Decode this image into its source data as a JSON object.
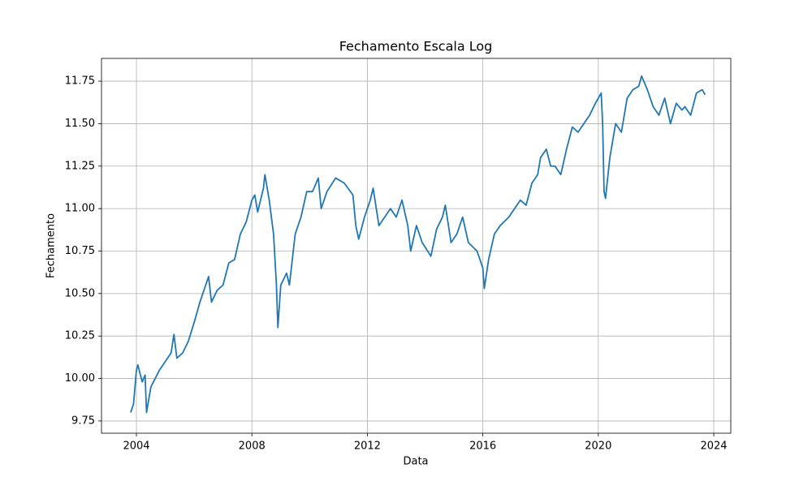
{
  "chart_data": {
    "type": "line",
    "title": "Fechamento Escala Log",
    "x_label": "Data",
    "y_label": "Fechamento",
    "grid": true,
    "xlim": [
      2002.79,
      2024.59
    ],
    "xticks": [
      2004,
      2008,
      2012,
      2016,
      2020,
      2024
    ],
    "ylim": [
      9.678,
      11.884
    ],
    "yticks": [
      9.75,
      {
        "value": 10.0,
        "label": "10.00"
      },
      10.25,
      {
        "value": 10.5,
        "label": "10.50"
      },
      10.75,
      {
        "value": 11.0,
        "label": "11.00"
      },
      11.25,
      {
        "value": 11.5,
        "label": "11.50"
      },
      11.75
    ],
    "x": [
      2003.8,
      2003.9,
      2004.0,
      2004.05,
      2004.2,
      2004.3,
      2004.35,
      2004.5,
      2004.8,
      2005.0,
      2005.2,
      2005.3,
      2005.4,
      2005.6,
      2005.8,
      2006.0,
      2006.2,
      2006.4,
      2006.5,
      2006.6,
      2006.8,
      2007.0,
      2007.2,
      2007.4,
      2007.6,
      2007.8,
      2008.0,
      2008.1,
      2008.2,
      2008.3,
      2008.4,
      2008.45,
      2008.6,
      2008.75,
      2008.85,
      2008.9,
      2009.0,
      2009.2,
      2009.3,
      2009.5,
      2009.7,
      2009.9,
      2010.1,
      2010.3,
      2010.4,
      2010.6,
      2010.9,
      2011.2,
      2011.5,
      2011.6,
      2011.7,
      2011.9,
      2012.1,
      2012.2,
      2012.4,
      2012.6,
      2012.8,
      2013.0,
      2013.2,
      2013.4,
      2013.5,
      2013.7,
      2013.9,
      2014.2,
      2014.4,
      2014.6,
      2014.7,
      2014.9,
      2015.1,
      2015.3,
      2015.5,
      2015.8,
      2016.0,
      2016.05,
      2016.2,
      2016.4,
      2016.6,
      2016.9,
      2017.1,
      2017.3,
      2017.5,
      2017.7,
      2017.9,
      2018.0,
      2018.2,
      2018.35,
      2018.5,
      2018.7,
      2018.9,
      2019.1,
      2019.3,
      2019.5,
      2019.7,
      2019.9,
      2020.0,
      2020.1,
      2020.15,
      2020.2,
      2020.25,
      2020.4,
      2020.6,
      2020.8,
      2021.0,
      2021.2,
      2021.4,
      2021.5,
      2021.7,
      2021.9,
      2022.1,
      2022.3,
      2022.5,
      2022.7,
      2022.9,
      2023.0,
      2023.2,
      2023.4,
      2023.6,
      2023.7
    ],
    "series": [
      {
        "color": "#1f77b4",
        "values": [
          9.8,
          9.85,
          10.05,
          10.08,
          9.98,
          10.02,
          9.8,
          9.95,
          10.05,
          10.1,
          10.15,
          10.26,
          10.12,
          10.15,
          10.22,
          10.33,
          10.45,
          10.55,
          10.6,
          10.45,
          10.52,
          10.55,
          10.68,
          10.7,
          10.85,
          10.92,
          11.05,
          11.08,
          10.98,
          11.05,
          11.12,
          11.2,
          11.05,
          10.85,
          10.55,
          10.3,
          10.55,
          10.62,
          10.55,
          10.85,
          10.95,
          11.1,
          11.1,
          11.18,
          11.0,
          11.1,
          11.18,
          11.15,
          11.08,
          10.9,
          10.82,
          10.95,
          11.05,
          11.12,
          10.9,
          10.95,
          11.0,
          10.95,
          11.05,
          10.9,
          10.75,
          10.9,
          10.8,
          10.72,
          10.88,
          10.95,
          11.02,
          10.8,
          10.85,
          10.95,
          10.8,
          10.75,
          10.65,
          10.53,
          10.7,
          10.85,
          10.9,
          10.95,
          11.0,
          11.05,
          11.02,
          11.15,
          11.2,
          11.3,
          11.35,
          11.25,
          11.25,
          11.2,
          11.35,
          11.48,
          11.45,
          11.5,
          11.55,
          11.62,
          11.65,
          11.68,
          11.5,
          11.1,
          11.06,
          11.3,
          11.5,
          11.45,
          11.65,
          11.7,
          11.72,
          11.78,
          11.7,
          11.6,
          11.55,
          11.65,
          11.5,
          11.62,
          11.58,
          11.6,
          11.55,
          11.68,
          11.7,
          11.67
        ]
      }
    ]
  }
}
